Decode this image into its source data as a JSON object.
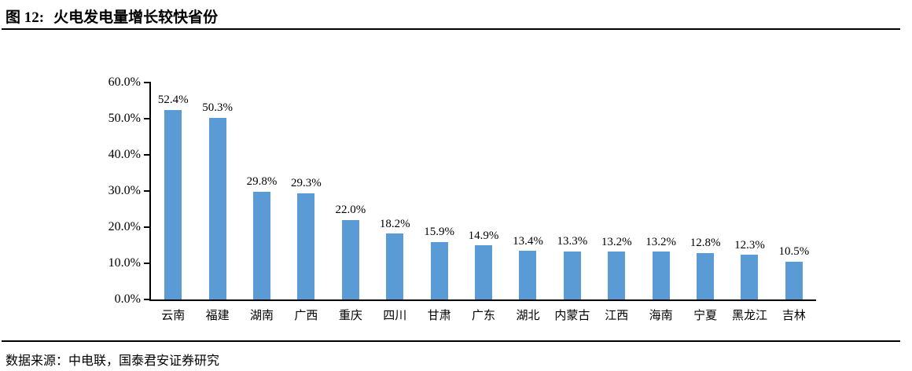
{
  "figure": {
    "label": "图 12:",
    "title": "火电发电量增长较快省份",
    "source_label": "数据来源：",
    "source_text": "中电联，国泰君安证券研究"
  },
  "chart_data": {
    "type": "bar",
    "title": "火电发电量增长较快省份",
    "categories": [
      "云南",
      "福建",
      "湖南",
      "广西",
      "重庆",
      "四川",
      "甘肃",
      "广东",
      "湖北",
      "内蒙古",
      "江西",
      "海南",
      "宁夏",
      "黑龙江",
      "吉林"
    ],
    "values": [
      52.4,
      50.3,
      29.8,
      29.3,
      22.0,
      18.2,
      15.9,
      14.9,
      13.4,
      13.3,
      13.2,
      13.2,
      12.8,
      12.3,
      10.5
    ],
    "value_labels": [
      "52.4%",
      "50.3%",
      "29.8%",
      "29.3%",
      "22.0%",
      "18.2%",
      "15.9%",
      "14.9%",
      "13.4%",
      "13.3%",
      "13.2%",
      "13.2%",
      "12.8%",
      "12.3%",
      "10.5%"
    ],
    "xlabel": "",
    "ylabel": "",
    "ylim": [
      0,
      60
    ],
    "ytick_labels": [
      "60.0%",
      "50.0%",
      "40.0%",
      "30.0%",
      "20.0%",
      "10.0%",
      "0.0%"
    ],
    "grid": false,
    "legend": "none",
    "bar_color": "#5B9BD5",
    "axis_color": "#000000",
    "text_color": "#000000"
  }
}
